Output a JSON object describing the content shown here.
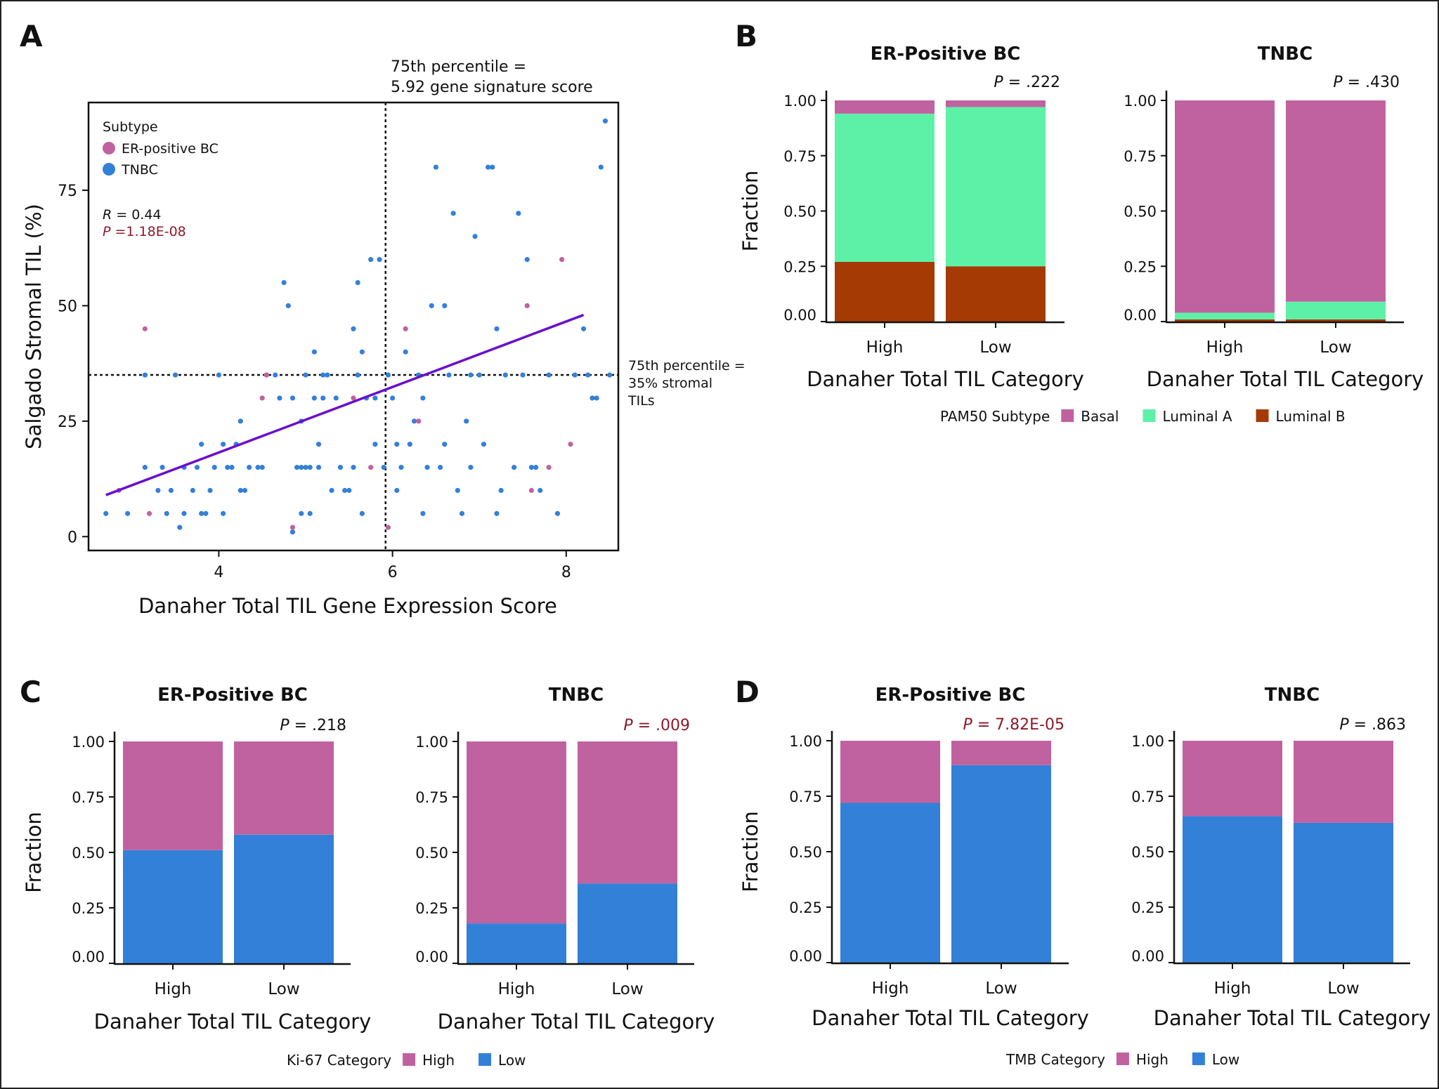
{
  "colors": {
    "pink": "#c062a0",
    "blue": "#3380d8",
    "green": "#5df1a8",
    "brown": "#a53a05",
    "trend": "#6a0fcc",
    "pvalue_red": "#8b1a2b",
    "axis": "#111111"
  },
  "chart_data": [
    {
      "panel": "A",
      "type": "scatter",
      "title": "",
      "xlabel": "Danaher Total TIL Gene Expression Score",
      "ylabel": "Salgado Stromal TIL (%)",
      "xlim": [
        2.5,
        8.6
      ],
      "ylim": [
        -3,
        94
      ],
      "xticks": [
        4,
        6,
        8
      ],
      "xtick_labels": [
        "4",
        "6",
        "8"
      ],
      "yticks": [
        0,
        25,
        50,
        75
      ],
      "ytick_labels": [
        "0",
        "25",
        "50",
        "75"
      ],
      "legend": {
        "title": "Subtype",
        "position": "top-left",
        "entries": [
          {
            "label": "ER-positive BC",
            "color": "#c062a0"
          },
          {
            "label": "TNBC",
            "color": "#3380d8"
          }
        ]
      },
      "stats": {
        "r_label": "R",
        "r_value": " = 0.44",
        "p_label": "P",
        "p_value": " =1.18E-08"
      },
      "vline": {
        "x": 5.92,
        "label_line1": "75th percentile =",
        "label_line2": "5.92 gene signature score"
      },
      "hline": {
        "y": 35,
        "label_line1": "75th percentile =",
        "label_line2": "35% stromal",
        "label_line3": "TILs"
      },
      "trend": {
        "x": [
          2.7,
          8.2
        ],
        "y": [
          9,
          48
        ]
      },
      "series": [
        {
          "name": "TNBC",
          "points": [
            [
              2.7,
              5
            ],
            [
              2.95,
              5
            ],
            [
              3.15,
              15
            ],
            [
              3.15,
              35
            ],
            [
              3.3,
              10
            ],
            [
              3.35,
              15
            ],
            [
              3.4,
              5
            ],
            [
              3.45,
              10
            ],
            [
              3.5,
              35
            ],
            [
              3.55,
              2
            ],
            [
              3.6,
              5
            ],
            [
              3.6,
              15
            ],
            [
              3.7,
              10
            ],
            [
              3.75,
              15
            ],
            [
              3.8,
              20
            ],
            [
              3.8,
              5
            ],
            [
              3.85,
              5
            ],
            [
              3.9,
              10
            ],
            [
              3.95,
              15
            ],
            [
              4.0,
              35
            ],
            [
              4.05,
              20
            ],
            [
              4.05,
              5
            ],
            [
              4.1,
              15
            ],
            [
              4.15,
              15
            ],
            [
              4.2,
              20
            ],
            [
              4.25,
              25
            ],
            [
              4.25,
              10
            ],
            [
              4.3,
              10
            ],
            [
              4.35,
              15
            ],
            [
              4.45,
              15
            ],
            [
              4.5,
              15
            ],
            [
              4.55,
              35
            ],
            [
              4.65,
              35
            ],
            [
              4.7,
              30
            ],
            [
              4.75,
              55
            ],
            [
              4.8,
              50
            ],
            [
              4.85,
              30
            ],
            [
              4.9,
              15
            ],
            [
              4.95,
              15
            ],
            [
              4.95,
              25
            ],
            [
              5.0,
              35
            ],
            [
              5.0,
              15
            ],
            [
              5.05,
              15
            ],
            [
              5.05,
              5
            ],
            [
              5.1,
              30
            ],
            [
              5.1,
              40
            ],
            [
              5.15,
              15
            ],
            [
              5.2,
              35
            ],
            [
              5.2,
              30
            ],
            [
              5.25,
              35
            ],
            [
              5.35,
              30
            ],
            [
              5.4,
              15
            ],
            [
              5.45,
              10
            ],
            [
              5.5,
              10
            ],
            [
              5.55,
              45
            ],
            [
              5.6,
              35
            ],
            [
              5.6,
              55
            ],
            [
              5.65,
              40
            ],
            [
              5.7,
              30
            ],
            [
              5.75,
              60
            ],
            [
              5.8,
              30
            ],
            [
              5.8,
              20
            ],
            [
              5.85,
              60
            ],
            [
              5.9,
              15
            ],
            [
              5.95,
              35
            ],
            [
              6.0,
              30
            ],
            [
              6.05,
              10
            ],
            [
              6.1,
              15
            ],
            [
              6.15,
              40
            ],
            [
              6.2,
              20
            ],
            [
              6.25,
              25
            ],
            [
              6.3,
              35
            ],
            [
              6.35,
              30
            ],
            [
              6.4,
              15
            ],
            [
              6.45,
              50
            ],
            [
              6.5,
              80
            ],
            [
              6.55,
              15
            ],
            [
              6.6,
              50
            ],
            [
              6.65,
              35
            ],
            [
              6.7,
              70
            ],
            [
              6.75,
              10
            ],
            [
              6.8,
              5
            ],
            [
              6.85,
              25
            ],
            [
              6.9,
              35
            ],
            [
              6.95,
              65
            ],
            [
              7.0,
              35
            ],
            [
              7.05,
              20
            ],
            [
              7.1,
              80
            ],
            [
              7.15,
              80
            ],
            [
              7.2,
              45
            ],
            [
              7.25,
              10
            ],
            [
              7.3,
              35
            ],
            [
              7.4,
              15
            ],
            [
              7.45,
              70
            ],
            [
              7.5,
              35
            ],
            [
              7.55,
              60
            ],
            [
              7.6,
              15
            ],
            [
              7.7,
              10
            ],
            [
              7.8,
              35
            ],
            [
              8.2,
              45
            ],
            [
              8.25,
              35
            ],
            [
              8.3,
              30
            ],
            [
              8.35,
              30
            ],
            [
              8.4,
              80
            ],
            [
              8.45,
              90
            ],
            [
              8.5,
              35
            ],
            [
              8.1,
              35
            ],
            [
              7.9,
              5
            ],
            [
              6.05,
              20
            ],
            [
              5.3,
              10
            ],
            [
              4.85,
              1
            ],
            [
              4.95,
              5
            ],
            [
              5.15,
              20
            ],
            [
              5.55,
              15
            ],
            [
              5.65,
              5
            ],
            [
              6.35,
              5
            ],
            [
              6.6,
              20
            ],
            [
              6.9,
              15
            ],
            [
              7.2,
              5
            ],
            [
              7.65,
              15
            ]
          ]
        },
        {
          "name": "ER-positive BC",
          "points": [
            [
              2.85,
              10
            ],
            [
              3.15,
              45
            ],
            [
              3.2,
              5
            ],
            [
              4.5,
              30
            ],
            [
              4.55,
              35
            ],
            [
              4.85,
              2
            ],
            [
              5.55,
              30
            ],
            [
              5.75,
              15
            ],
            [
              5.95,
              2
            ],
            [
              6.15,
              45
            ],
            [
              6.3,
              25
            ],
            [
              7.55,
              50
            ],
            [
              7.6,
              10
            ],
            [
              7.8,
              15
            ],
            [
              7.95,
              60
            ],
            [
              8.05,
              20
            ]
          ]
        }
      ]
    },
    {
      "panel": "B",
      "type": "bar",
      "stacked": true,
      "title": "ER-Positive BC",
      "p_label": "P",
      "p_value": " = .222",
      "p_significant": false,
      "xlabel": "Danaher Total TIL Category",
      "ylabel": "Fraction",
      "categories": [
        "High",
        "Low"
      ],
      "ylim": [
        0,
        1
      ],
      "ytick_labels": [
        "0.00",
        "0.25",
        "0.50",
        "0.75",
        "1.00"
      ],
      "series": [
        {
          "name": "Luminal B",
          "color": "#a53a05",
          "values": [
            0.27,
            0.25
          ]
        },
        {
          "name": "Luminal A",
          "color": "#5df1a8",
          "values": [
            0.67,
            0.72
          ]
        },
        {
          "name": "Basal",
          "color": "#c062a0",
          "values": [
            0.06,
            0.03
          ]
        }
      ]
    },
    {
      "panel": "B",
      "type": "bar",
      "stacked": true,
      "title": "TNBC",
      "p_label": "P",
      "p_value": " = .430",
      "p_significant": false,
      "xlabel": "Danaher Total TIL Category",
      "ylabel": "",
      "categories": [
        "High",
        "Low"
      ],
      "ylim": [
        0,
        1
      ],
      "ytick_labels": [
        "0.00",
        "0.25",
        "0.50",
        "0.75",
        "1.00"
      ],
      "series": [
        {
          "name": "Luminal B",
          "color": "#a53a05",
          "values": [
            0.01,
            0.01
          ]
        },
        {
          "name": "Luminal A",
          "color": "#5df1a8",
          "values": [
            0.03,
            0.08
          ]
        },
        {
          "name": "Basal",
          "color": "#c062a0",
          "values": [
            0.96,
            0.91
          ]
        }
      ]
    },
    {
      "panel": "C",
      "type": "bar",
      "stacked": true,
      "title": "ER-Positive BC",
      "p_label": "P",
      "p_value": " = .218",
      "p_significant": false,
      "xlabel": "Danaher Total TIL Category",
      "ylabel": "Fraction",
      "categories": [
        "High",
        "Low"
      ],
      "ylim": [
        0,
        1
      ],
      "ytick_labels": [
        "0.00",
        "0.25",
        "0.50",
        "0.75",
        "1.00"
      ],
      "series": [
        {
          "name": "Low",
          "color": "#3380d8",
          "values": [
            0.51,
            0.58
          ]
        },
        {
          "name": "High",
          "color": "#c062a0",
          "values": [
            0.49,
            0.42
          ]
        }
      ]
    },
    {
      "panel": "C",
      "type": "bar",
      "stacked": true,
      "title": "TNBC",
      "p_label": "P",
      "p_value": " = .009",
      "p_significant": true,
      "xlabel": "Danaher Total TIL Category",
      "ylabel": "",
      "categories": [
        "High",
        "Low"
      ],
      "ylim": [
        0,
        1
      ],
      "ytick_labels": [
        "0.00",
        "0.25",
        "0.50",
        "0.75",
        "1.00"
      ],
      "series": [
        {
          "name": "Low",
          "color": "#3380d8",
          "values": [
            0.18,
            0.36
          ]
        },
        {
          "name": "High",
          "color": "#c062a0",
          "values": [
            0.82,
            0.64
          ]
        }
      ]
    },
    {
      "panel": "D",
      "type": "bar",
      "stacked": true,
      "title": "ER-Positive BC",
      "p_label": "P",
      "p_value": " = 7.82E-05",
      "p_significant": true,
      "xlabel": "Danaher Total TIL Category",
      "ylabel": "Fraction",
      "categories": [
        "High",
        "Low"
      ],
      "ylim": [
        0,
        1
      ],
      "ytick_labels": [
        "0.00",
        "0.25",
        "0.50",
        "0.75",
        "1.00"
      ],
      "series": [
        {
          "name": "Low",
          "color": "#3380d8",
          "values": [
            0.72,
            0.89
          ]
        },
        {
          "name": "High",
          "color": "#c062a0",
          "values": [
            0.28,
            0.11
          ]
        }
      ]
    },
    {
      "panel": "D",
      "type": "bar",
      "stacked": true,
      "title": "TNBC",
      "p_label": "P",
      "p_value": " = .863",
      "p_significant": false,
      "xlabel": "Danaher Total TIL Category",
      "ylabel": "",
      "categories": [
        "High",
        "Low"
      ],
      "ylim": [
        0,
        1
      ],
      "ytick_labels": [
        "0.00",
        "0.25",
        "0.50",
        "0.75",
        "1.00"
      ],
      "series": [
        {
          "name": "Low",
          "color": "#3380d8",
          "values": [
            0.66,
            0.63
          ]
        },
        {
          "name": "High",
          "color": "#c062a0",
          "values": [
            0.34,
            0.37
          ]
        }
      ]
    }
  ],
  "panel_letters": [
    "A",
    "B",
    "C",
    "D"
  ],
  "legends": {
    "B": {
      "title": "PAM50 Subtype",
      "entries": [
        {
          "label": "Basal",
          "color": "#c062a0"
        },
        {
          "label": "Luminal A",
          "color": "#5df1a8"
        },
        {
          "label": "Luminal B",
          "color": "#a53a05"
        }
      ]
    },
    "C": {
      "title": "Ki-67 Category",
      "entries": [
        {
          "label": "High",
          "color": "#c062a0"
        },
        {
          "label": "Low",
          "color": "#3380d8"
        }
      ]
    },
    "D": {
      "title": "TMB Category",
      "entries": [
        {
          "label": "High",
          "color": "#c062a0"
        },
        {
          "label": "Low",
          "color": "#3380d8"
        }
      ]
    }
  }
}
